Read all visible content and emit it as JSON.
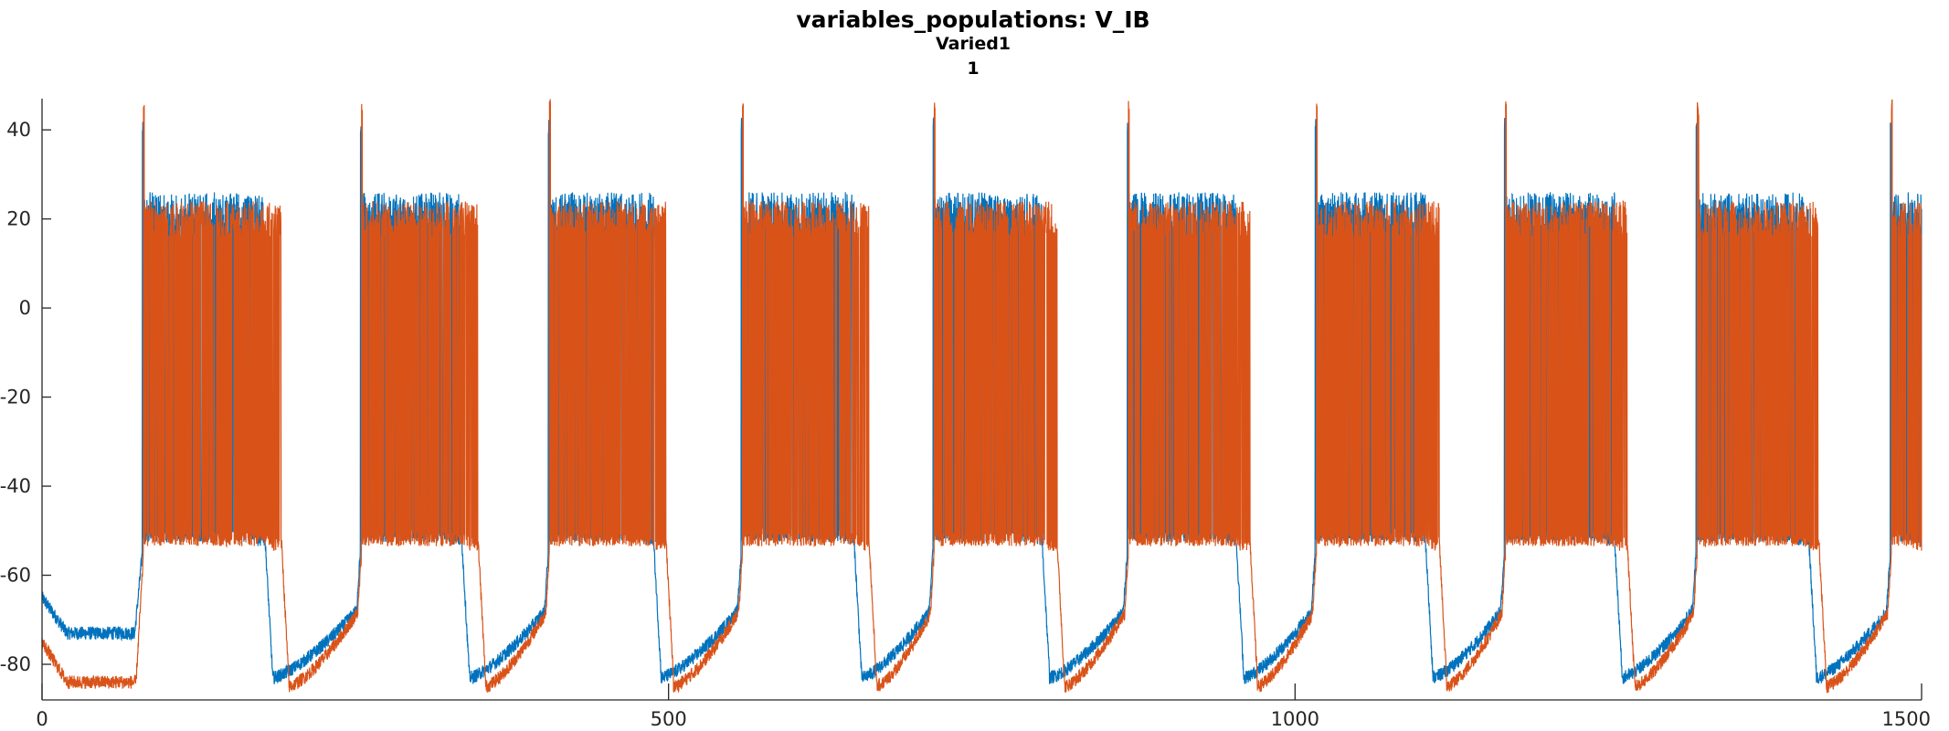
{
  "chart_data": {
    "type": "line",
    "title": "variables_populations: V_IB",
    "subtitle_lines": [
      "Varied1",
      "1"
    ],
    "xlabel": "",
    "ylabel": "",
    "xlim": [
      0,
      1500
    ],
    "ylim": [
      -88,
      47
    ],
    "xticks": [
      0,
      500,
      1000,
      1500
    ],
    "xtick_labels": [
      "0",
      "500",
      "1000",
      "1500"
    ],
    "yticks": [
      40,
      20,
      0,
      -20,
      -40,
      -60,
      -80
    ],
    "ytick_labels": [
      "40",
      "20",
      "0",
      "-20",
      "-40",
      "-60",
      "-80"
    ],
    "grid": false,
    "legend": null,
    "colors": {
      "series1": "#0072BD",
      "series2": "#D95319"
    },
    "series": [
      {
        "color": "#0072BD",
        "burst_windows": [
          [
            80,
            178
          ],
          [
            254,
            335
          ],
          [
            404,
            488
          ],
          [
            558,
            648
          ],
          [
            711,
            798
          ],
          [
            866,
            953
          ],
          [
            1016,
            1104
          ],
          [
            1167,
            1255
          ],
          [
            1320,
            1410
          ],
          [
            1475,
            1500
          ]
        ],
        "burst_peak_approx": 43,
        "burst_plateau_top": 22,
        "burst_trough": -51,
        "interburst_min": -86,
        "initial_value": -65
      },
      {
        "color": "#D95319",
        "burst_windows": [
          [
            81,
            191
          ],
          [
            255,
            348
          ],
          [
            405,
            498
          ],
          [
            559,
            660
          ],
          [
            712,
            810
          ],
          [
            867,
            964
          ],
          [
            1017,
            1115
          ],
          [
            1168,
            1265
          ],
          [
            1321,
            1418
          ],
          [
            1476,
            1500
          ]
        ],
        "burst_peak_approx": 47,
        "burst_plateau_top": 20,
        "burst_trough": -52,
        "interburst_min": -88,
        "initial_value": -75
      }
    ]
  }
}
